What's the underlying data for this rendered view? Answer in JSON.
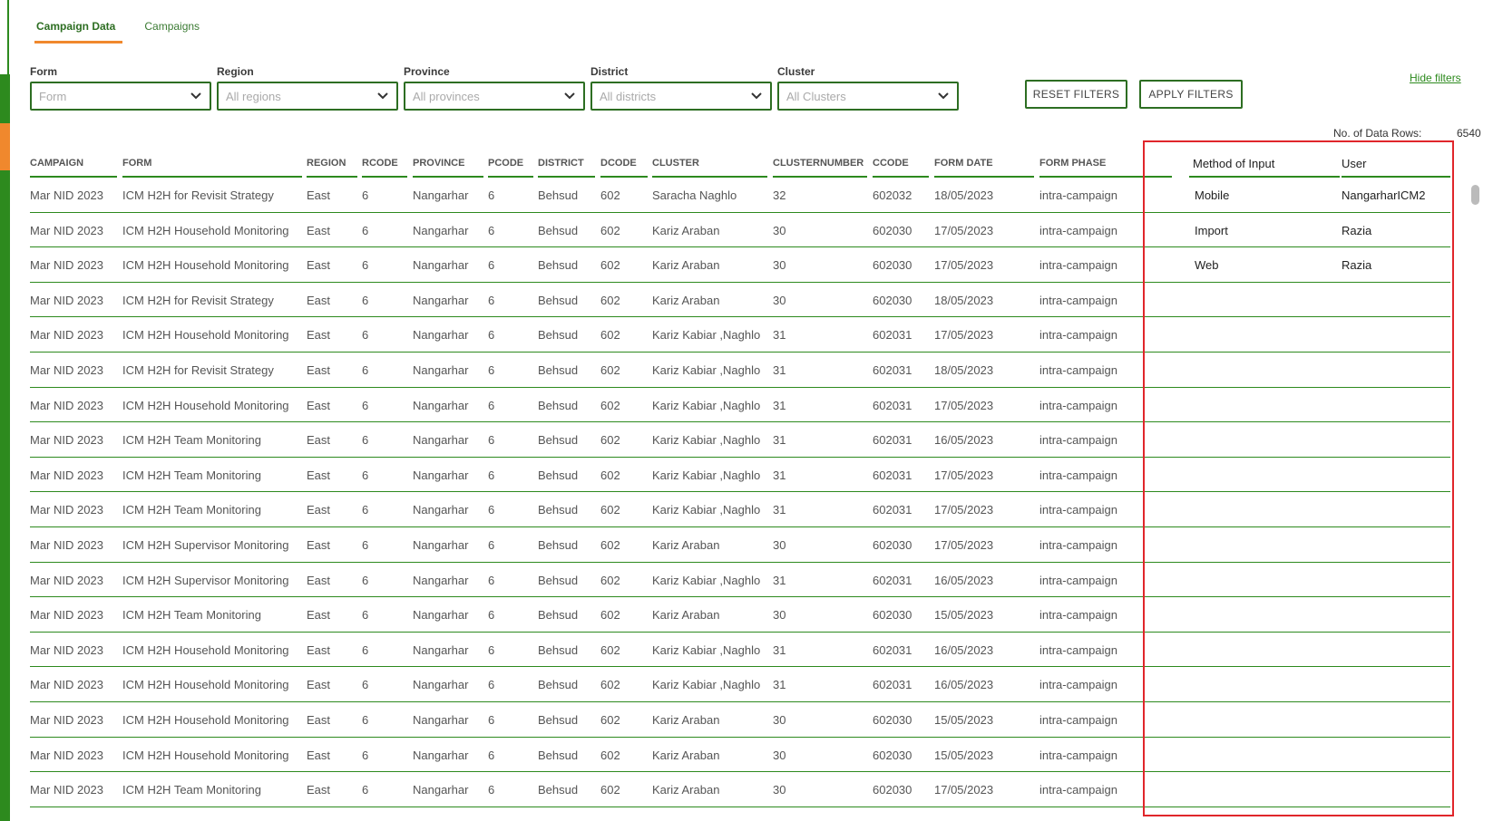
{
  "tabs": [
    {
      "label": "Campaign Data",
      "active": true
    },
    {
      "label": "Campaigns",
      "active": false
    }
  ],
  "filters": [
    {
      "label": "Form",
      "placeholder": "Form"
    },
    {
      "label": "Region",
      "placeholder": "All regions"
    },
    {
      "label": "Province",
      "placeholder": "All provinces"
    },
    {
      "label": "District",
      "placeholder": "All districts"
    },
    {
      "label": "Cluster",
      "placeholder": "All Clusters"
    }
  ],
  "buttons": {
    "reset": "RESET FILTERS",
    "apply": "APPLY FILTERS"
  },
  "hide_filters": "Hide filters",
  "row_count": {
    "label": "No. of Data Rows:",
    "value": "6540"
  },
  "columns": [
    "CAMPAIGN",
    "FORM",
    "REGION",
    "RCODE",
    "PROVINCE",
    "PCODE",
    "DISTRICT",
    "DCODE",
    "CLUSTER",
    "CLUSTERNUMBER",
    "CCODE",
    "FORM DATE",
    "FORM PHASE",
    "Method of Input",
    "User"
  ],
  "rows": [
    [
      "Mar NID 2023",
      "ICM H2H for Revisit Strategy",
      "East",
      "6",
      "Nangarhar",
      "6",
      "Behsud",
      "602",
      "Saracha Naghlo",
      "32",
      "602032",
      "18/05/2023",
      "intra-campaign",
      "Mobile",
      "NangarharICM2"
    ],
    [
      "Mar NID 2023",
      "ICM H2H Household Monitoring",
      "East",
      "6",
      "Nangarhar",
      "6",
      "Behsud",
      "602",
      "Kariz Araban",
      "30",
      "602030",
      "17/05/2023",
      "intra-campaign",
      "Import",
      "Razia"
    ],
    [
      "Mar NID 2023",
      "ICM H2H Household Monitoring",
      "East",
      "6",
      "Nangarhar",
      "6",
      "Behsud",
      "602",
      "Kariz Araban",
      "30",
      "602030",
      "17/05/2023",
      "intra-campaign",
      "Web",
      "Razia"
    ],
    [
      "Mar NID 2023",
      "ICM H2H for Revisit Strategy",
      "East",
      "6",
      "Nangarhar",
      "6",
      "Behsud",
      "602",
      "Kariz Araban",
      "30",
      "602030",
      "18/05/2023",
      "intra-campaign",
      "",
      ""
    ],
    [
      "Mar NID 2023",
      "ICM H2H Household Monitoring",
      "East",
      "6",
      "Nangarhar",
      "6",
      "Behsud",
      "602",
      "Kariz Kabiar ,Naghlo",
      "31",
      "602031",
      "17/05/2023",
      "intra-campaign",
      "",
      ""
    ],
    [
      "Mar NID 2023",
      "ICM H2H for Revisit Strategy",
      "East",
      "6",
      "Nangarhar",
      "6",
      "Behsud",
      "602",
      "Kariz Kabiar ,Naghlo",
      "31",
      "602031",
      "18/05/2023",
      "intra-campaign",
      "",
      ""
    ],
    [
      "Mar NID 2023",
      "ICM H2H Household Monitoring",
      "East",
      "6",
      "Nangarhar",
      "6",
      "Behsud",
      "602",
      "Kariz Kabiar ,Naghlo",
      "31",
      "602031",
      "17/05/2023",
      "intra-campaign",
      "",
      ""
    ],
    [
      "Mar NID 2023",
      "ICM H2H Team Monitoring",
      "East",
      "6",
      "Nangarhar",
      "6",
      "Behsud",
      "602",
      "Kariz Kabiar ,Naghlo",
      "31",
      "602031",
      "16/05/2023",
      "intra-campaign",
      "",
      ""
    ],
    [
      "Mar NID 2023",
      "ICM H2H Team Monitoring",
      "East",
      "6",
      "Nangarhar",
      "6",
      "Behsud",
      "602",
      "Kariz Kabiar ,Naghlo",
      "31",
      "602031",
      "17/05/2023",
      "intra-campaign",
      "",
      ""
    ],
    [
      "Mar NID 2023",
      "ICM H2H Team Monitoring",
      "East",
      "6",
      "Nangarhar",
      "6",
      "Behsud",
      "602",
      "Kariz Kabiar ,Naghlo",
      "31",
      "602031",
      "17/05/2023",
      "intra-campaign",
      "",
      ""
    ],
    [
      "Mar NID 2023",
      "ICM H2H Supervisor Monitoring",
      "East",
      "6",
      "Nangarhar",
      "6",
      "Behsud",
      "602",
      "Kariz Araban",
      "30",
      "602030",
      "17/05/2023",
      "intra-campaign",
      "",
      ""
    ],
    [
      "Mar NID 2023",
      "ICM H2H Supervisor Monitoring",
      "East",
      "6",
      "Nangarhar",
      "6",
      "Behsud",
      "602",
      "Kariz Kabiar ,Naghlo",
      "31",
      "602031",
      "16/05/2023",
      "intra-campaign",
      "",
      ""
    ],
    [
      "Mar NID 2023",
      "ICM H2H Team Monitoring",
      "East",
      "6",
      "Nangarhar",
      "6",
      "Behsud",
      "602",
      "Kariz Araban",
      "30",
      "602030",
      "15/05/2023",
      "intra-campaign",
      "",
      ""
    ],
    [
      "Mar NID 2023",
      "ICM H2H Household Monitoring",
      "East",
      "6",
      "Nangarhar",
      "6",
      "Behsud",
      "602",
      "Kariz Kabiar ,Naghlo",
      "31",
      "602031",
      "16/05/2023",
      "intra-campaign",
      "",
      ""
    ],
    [
      "Mar NID 2023",
      "ICM H2H Household Monitoring",
      "East",
      "6",
      "Nangarhar",
      "6",
      "Behsud",
      "602",
      "Kariz Kabiar ,Naghlo",
      "31",
      "602031",
      "16/05/2023",
      "intra-campaign",
      "",
      ""
    ],
    [
      "Mar NID 2023",
      "ICM H2H Household Monitoring",
      "East",
      "6",
      "Nangarhar",
      "6",
      "Behsud",
      "602",
      "Kariz Araban",
      "30",
      "602030",
      "15/05/2023",
      "intra-campaign",
      "",
      ""
    ],
    [
      "Mar NID 2023",
      "ICM H2H Household Monitoring",
      "East",
      "6",
      "Nangarhar",
      "6",
      "Behsud",
      "602",
      "Kariz Araban",
      "30",
      "602030",
      "15/05/2023",
      "intra-campaign",
      "",
      ""
    ],
    [
      "Mar NID 2023",
      "ICM H2H Team Monitoring",
      "East",
      "6",
      "Nangarhar",
      "6",
      "Behsud",
      "602",
      "Kariz Araban",
      "30",
      "602030",
      "17/05/2023",
      "intra-campaign",
      "",
      ""
    ]
  ],
  "colors": {
    "accent": "#2d8a1e",
    "tab_underline": "#f0882d",
    "highlight_box": "#e0262b"
  }
}
